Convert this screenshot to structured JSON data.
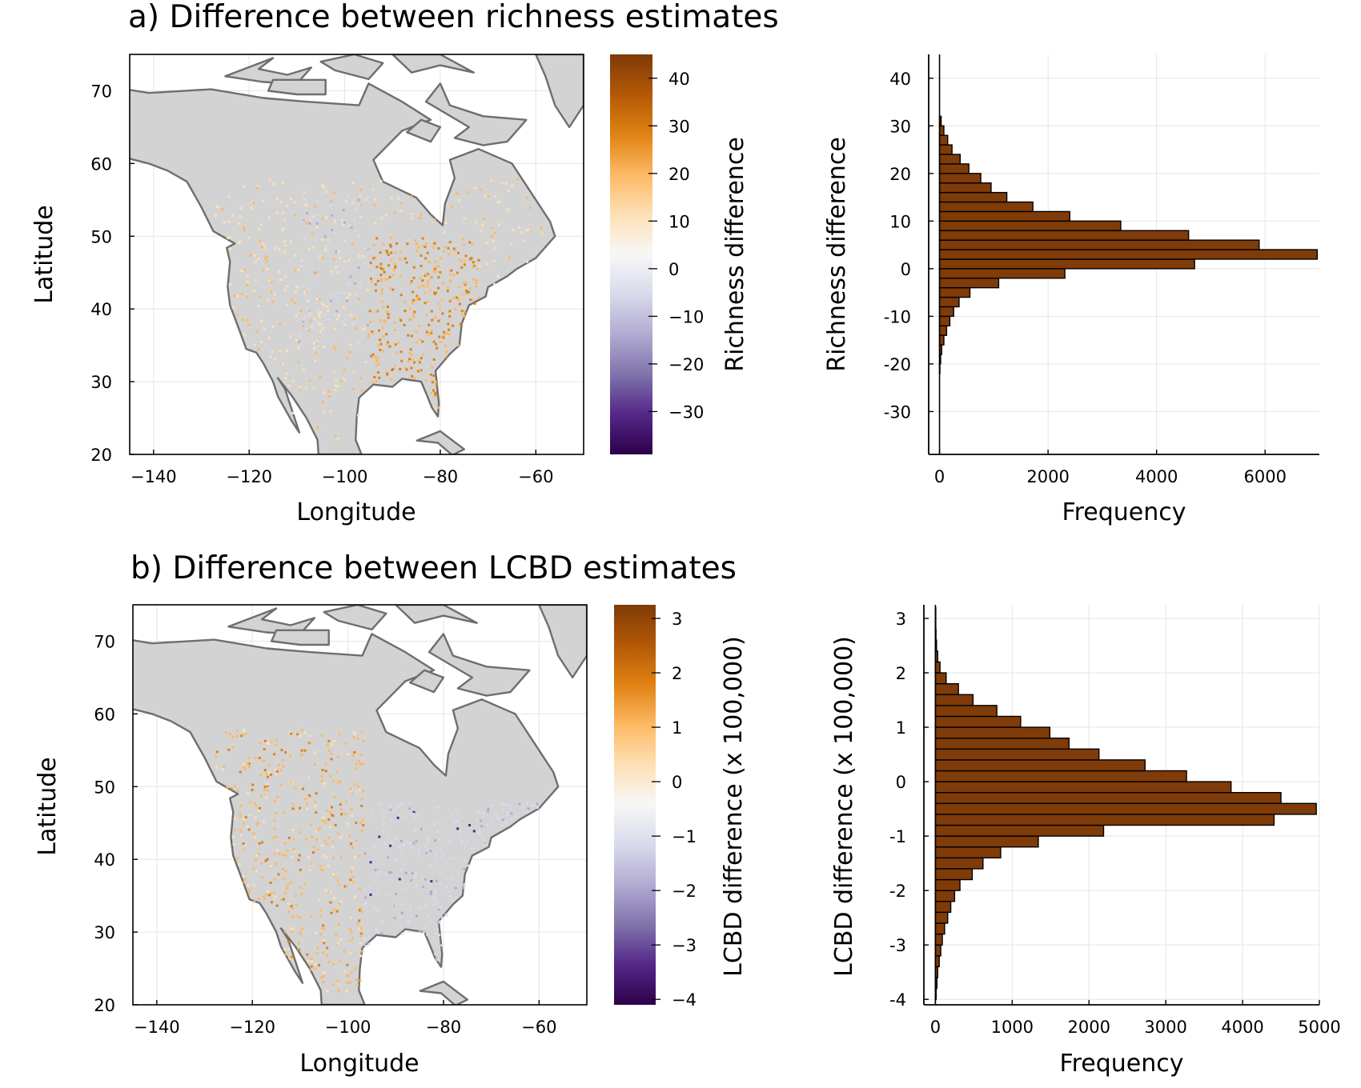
{
  "panels": {
    "a": {
      "title": "a) Difference between richness estimates",
      "map": {
        "xlabel": "Longitude",
        "ylabel": "Latitude",
        "xlim": [
          -145,
          -50
        ],
        "ylim": [
          20,
          75
        ],
        "xticks": [
          -140,
          -120,
          -100,
          -80,
          -60
        ],
        "xtick_labels": [
          "−140",
          "−120",
          "−100",
          "−80",
          "−60"
        ],
        "yticks": [
          20,
          30,
          40,
          50,
          60,
          70
        ],
        "ytick_labels": [
          "20",
          "30",
          "40",
          "50",
          "60",
          "70"
        ]
      },
      "colorbar": {
        "label": "Richness difference",
        "range": [
          -39,
          45
        ],
        "ticks": [
          40,
          30,
          20,
          10,
          0,
          -10,
          -20,
          -30
        ],
        "tick_labels": [
          "40",
          "30",
          "20",
          "10",
          "0",
          "−10",
          "−20",
          "−30"
        ]
      }
    },
    "b": {
      "title": "b) Difference between LCBD estimates",
      "map": {
        "xlabel": "Longitude",
        "ylabel": "Latitude",
        "xlim": [
          -145,
          -50
        ],
        "ylim": [
          20,
          75
        ],
        "xticks": [
          -140,
          -120,
          -100,
          -80,
          -60
        ],
        "xtick_labels": [
          "−140",
          "−120",
          "−100",
          "−80",
          "−60"
        ],
        "yticks": [
          20,
          30,
          40,
          50,
          60,
          70
        ],
        "ytick_labels": [
          "20",
          "30",
          "40",
          "50",
          "60",
          "70"
        ]
      },
      "colorbar": {
        "label": "LCBD difference (x 100,000)",
        "range": [
          -4.1,
          3.25
        ],
        "ticks": [
          3,
          2,
          1,
          0,
          -1,
          -2,
          -3,
          -4
        ],
        "tick_labels": [
          "3",
          "2",
          "1",
          "0",
          "−1",
          "−2",
          "−3",
          "−4"
        ]
      }
    }
  },
  "colors": {
    "bars": "#7f3b08",
    "land": "#d3d3d3",
    "coast": "#6e6e6e",
    "colormap": [
      "#2d004b",
      "#542788",
      "#8073ac",
      "#b2abd2",
      "#d8daeb",
      "#f7f7f7",
      "#fee0b6",
      "#fdb863",
      "#e08214",
      "#b35806",
      "#7f3b08"
    ]
  },
  "chart_data": [
    {
      "type": "heatmap",
      "title": "a) Difference between richness estimates",
      "xlabel": "Longitude",
      "ylabel": "Latitude",
      "xlim": [
        -145,
        -50
      ],
      "ylim": [
        20,
        75
      ],
      "colorbar_label": "Richness difference",
      "colorbar_range": [
        -39,
        45
      ],
      "colormap": "purple-orange diverging",
      "grid": true
    },
    {
      "type": "bar",
      "orientation": "horizontal",
      "xlabel": "Frequency",
      "ylabel": "Richness difference",
      "xlim": [
        -200,
        7000
      ],
      "ylim": [
        -39,
        45
      ],
      "xticks": [
        0,
        2000,
        4000,
        6000
      ],
      "xtick_labels": [
        "0",
        "2000",
        "4000",
        "6000"
      ],
      "yticks": [
        40,
        30,
        20,
        10,
        0,
        -10,
        -20,
        -30
      ],
      "ytick_labels": [
        "40",
        "30",
        "20",
        "10",
        "0",
        "-10",
        "-20",
        "-30"
      ],
      "bin_width": 2,
      "bin_lower_edges": [
        -22,
        -20,
        -18,
        -16,
        -14,
        -12,
        -10,
        -8,
        -6,
        -4,
        -2,
        0,
        2,
        4,
        6,
        8,
        10,
        12,
        14,
        16,
        18,
        20,
        22,
        24,
        26,
        28,
        30
      ],
      "values": [
        5,
        20,
        40,
        80,
        130,
        190,
        260,
        360,
        560,
        1090,
        2310,
        4700,
        6960,
        5890,
        4590,
        3340,
        2400,
        1720,
        1240,
        950,
        760,
        540,
        380,
        230,
        150,
        80,
        30
      ],
      "grid": true
    },
    {
      "type": "heatmap",
      "title": "b) Difference between LCBD estimates",
      "xlabel": "Longitude",
      "ylabel": "Latitude",
      "xlim": [
        -145,
        -50
      ],
      "ylim": [
        20,
        75
      ],
      "colorbar_label": "LCBD difference (x 100,000)",
      "colorbar_range": [
        -4.1,
        3.25
      ],
      "colormap": "purple-orange diverging",
      "grid": true
    },
    {
      "type": "bar",
      "orientation": "horizontal",
      "xlabel": "Frequency",
      "ylabel": "LCBD difference (x 100,000)",
      "xlim": [
        -150,
        5000
      ],
      "ylim": [
        -4.1,
        3.25
      ],
      "xticks": [
        0,
        1000,
        2000,
        3000,
        4000,
        5000
      ],
      "xtick_labels": [
        "0",
        "1000",
        "2000",
        "3000",
        "4000",
        "5000"
      ],
      "yticks": [
        3,
        2,
        1,
        0,
        -1,
        -2,
        -3,
        -4
      ],
      "ytick_labels": [
        "3",
        "2",
        "1",
        "0",
        "-1",
        "-2",
        "-3",
        "-4"
      ],
      "bin_width": 0.2,
      "bin_lower_edges": [
        -4.0,
        -3.8,
        -3.6,
        -3.4,
        -3.2,
        -3.0,
        -2.8,
        -2.6,
        -2.4,
        -2.2,
        -2.0,
        -1.8,
        -1.6,
        -1.4,
        -1.2,
        -1.0,
        -0.8,
        -0.6,
        -0.4,
        -0.2,
        0.0,
        0.2,
        0.4,
        0.6,
        0.8,
        1.0,
        1.2,
        1.4,
        1.6,
        1.8,
        2.0,
        2.2,
        2.4,
        2.6,
        2.8,
        3.0
      ],
      "values": [
        10,
        20,
        30,
        50,
        70,
        90,
        120,
        160,
        200,
        250,
        320,
        480,
        620,
        850,
        1340,
        2190,
        4410,
        4960,
        4500,
        3850,
        3270,
        2730,
        2130,
        1740,
        1490,
        1110,
        800,
        490,
        300,
        140,
        60,
        30,
        15,
        8,
        5,
        2
      ],
      "grid": true
    }
  ]
}
